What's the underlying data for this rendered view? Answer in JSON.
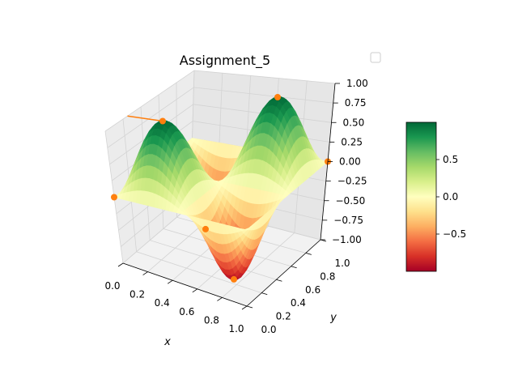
{
  "chart_data": {
    "type": "surface3d",
    "title": "Assignment_5",
    "xlabel": "x",
    "ylabel": "y",
    "zlabel": "",
    "xlim": [
      0,
      1
    ],
    "ylim": [
      0,
      1
    ],
    "zlim": [
      -1,
      1
    ],
    "x_ticks": [
      "0.0",
      "0.2",
      "0.4",
      "0.6",
      "0.8",
      "1.0"
    ],
    "y_ticks": [
      "0.0",
      "0.2",
      "0.4",
      "0.6",
      "0.8",
      "1.0"
    ],
    "z_ticks": [
      "−1.00",
      "−0.75",
      "−0.50",
      "−0.25",
      "0.00",
      "0.25",
      "0.50",
      "0.75",
      "1.00"
    ],
    "function": "z = sin(2*pi*x) * sin(2*pi*y)",
    "colormap": "RdYlGn",
    "grid": true,
    "legend": "top-right, empty",
    "colorbar": {
      "range": [
        -1,
        1
      ],
      "ticks": [
        "0.5",
        "0.0",
        "−0.5"
      ],
      "tick_values": [
        0.5,
        0.0,
        -0.5
      ]
    },
    "scatter_points": [
      {
        "x": 0.25,
        "y": 0.25,
        "z": 1.0
      },
      {
        "x": 0.75,
        "y": 0.75,
        "z": 1.0
      },
      {
        "x": 0.25,
        "y": 0.75,
        "z": -1.0
      },
      {
        "x": 0.75,
        "y": 0.25,
        "z": -1.0
      },
      {
        "x": 0.0,
        "y": 0.0,
        "z": 0.0
      },
      {
        "x": 1.0,
        "y": 1.0,
        "z": 0.0
      }
    ],
    "scatter_color": "#ff7f0e",
    "line_color": "#ff7f0e"
  }
}
